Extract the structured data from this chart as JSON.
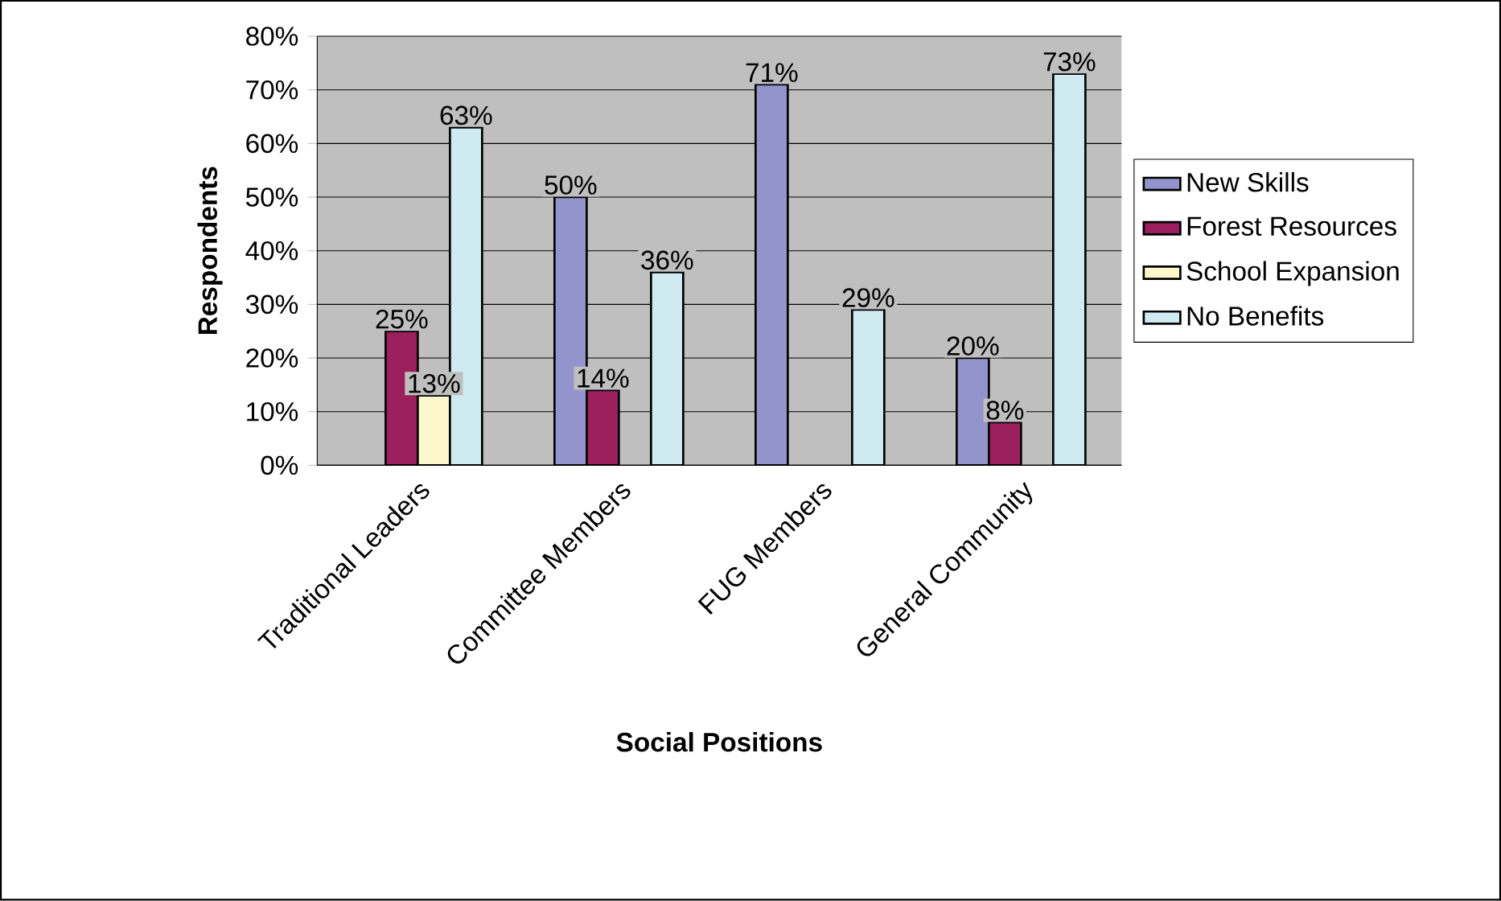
{
  "chart_data": {
    "type": "bar",
    "xlabel": "Social Positions",
    "ylabel": "Respondents",
    "categories": [
      "Traditional Leaders",
      "Committee Members",
      "FUG Members",
      "General Community"
    ],
    "series": [
      {
        "name": "New Skills",
        "color": "#9494cc",
        "values": [
          null,
          50,
          71,
          20
        ],
        "value_labels": [
          null,
          "50%",
          "71%",
          "20%"
        ]
      },
      {
        "name": "Forest Resources",
        "color": "#9b1f5c",
        "values": [
          25,
          14,
          null,
          8
        ],
        "value_labels": [
          "25%",
          "14%",
          null,
          "8%"
        ]
      },
      {
        "name": "School Expansion",
        "color": "#fdf8cc",
        "values": [
          13,
          null,
          null,
          null
        ],
        "value_labels": [
          "13%",
          null,
          null,
          null
        ]
      },
      {
        "name": "No Benefits",
        "color": "#cfeaf0",
        "values": [
          63,
          36,
          29,
          73
        ],
        "value_labels": [
          "63%",
          "36%",
          "29%",
          "73%"
        ]
      }
    ],
    "ylim": [
      0,
      80
    ],
    "yticks": [
      {
        "value": 0,
        "label": "0%"
      },
      {
        "value": 10,
        "label": "10%"
      },
      {
        "value": 20,
        "label": "20%"
      },
      {
        "value": 30,
        "label": "30%"
      },
      {
        "value": 40,
        "label": "40%"
      },
      {
        "value": 50,
        "label": "50%"
      },
      {
        "value": 60,
        "label": "60%"
      },
      {
        "value": 70,
        "label": "70%"
      },
      {
        "value": 80,
        "label": "80%"
      }
    ],
    "grid": "y",
    "legend": "right"
  }
}
